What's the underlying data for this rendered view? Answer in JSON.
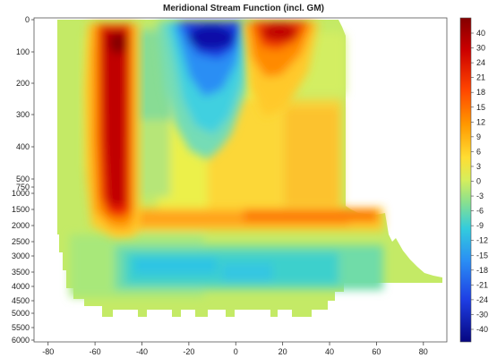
{
  "chart_data": {
    "type": "heatmap",
    "title": "Meridional Stream Function (incl. GM)",
    "xlabel": "",
    "ylabel": "",
    "x_ticks": [
      "-80",
      "-60",
      "-40",
      "-20",
      "0",
      "20",
      "40",
      "60",
      "80"
    ],
    "x_tick_values": [
      -80,
      -60,
      -40,
      -20,
      0,
      20,
      40,
      60,
      80
    ],
    "xlim": [
      -86,
      90
    ],
    "y_ticks": [
      "0",
      "100",
      "200",
      "300",
      "400",
      "500",
      "750",
      "1000",
      "1500",
      "2000",
      "2500",
      "3000",
      "3500",
      "4000",
      "4500",
      "5000",
      "5500",
      "6000"
    ],
    "y_tick_values": [
      0,
      100,
      200,
      300,
      400,
      500,
      750,
      1000,
      1500,
      2000,
      2500,
      3000,
      3500,
      4000,
      4500,
      5000,
      5500,
      6000
    ],
    "colorbar_ticks": [
      "40",
      "30",
      "24",
      "21",
      "18",
      "15",
      "12",
      "9",
      "6",
      "3",
      "0",
      "-3",
      "-6",
      "-9",
      "-12",
      "-15",
      "-18",
      "-21",
      "-24",
      "-30",
      "-40"
    ],
    "colorbar_colors": [
      "#9c0000",
      "#c00000",
      "#e21a00",
      "#f23a00",
      "#fb6200",
      "#fd8a00",
      "#ffad1c",
      "#ffc92a",
      "#ffe23e",
      "#eef04a",
      "#d2ee62",
      "#a8e87a",
      "#7cdc94",
      "#4ed2b8",
      "#2ec6de",
      "#28b0f0",
      "#2a8ef4",
      "#2a66f0",
      "#1e3ee4",
      "#1414c8",
      "#08088e"
    ],
    "colorbar_range": [
      -40,
      40
    ],
    "colormap": "jet",
    "features": [
      {
        "name": "southern-overturning-cell",
        "x_range": [
          -62,
          -46
        ],
        "depth_range": [
          30,
          2000
        ],
        "max_value": 40
      },
      {
        "name": "upper-tropical-cell-south",
        "x_range": [
          -25,
          0
        ],
        "depth_range": [
          0,
          150
        ],
        "min_value": -40
      },
      {
        "name": "upper-tropical-cell-north",
        "x_range": [
          2,
          30
        ],
        "depth_range": [
          0,
          150
        ],
        "max_value": 30
      },
      {
        "name": "intermediate-northward-band",
        "x_range": [
          -45,
          55
        ],
        "depth_range": [
          750,
          1500
        ],
        "max_value": 24
      },
      {
        "name": "abyssal-cell",
        "x_range": [
          -55,
          40
        ],
        "depth_range": [
          3000,
          4500
        ],
        "min_value": -12
      }
    ]
  }
}
